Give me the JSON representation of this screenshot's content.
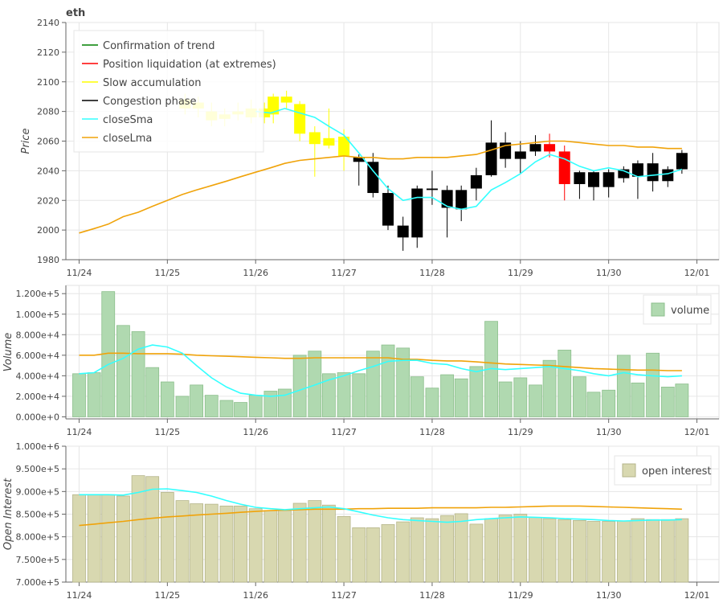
{
  "title": "eth",
  "colors": {
    "trend": "#008000",
    "liquidation": "#ff0000",
    "slow": "#ffff00",
    "congestion": "#000000",
    "sma": "#33ffff",
    "lma": "#f0a30a",
    "volume_fill": "#b0d9b0",
    "volume_edge": "#8cbf8c",
    "oi_fill": "#d8d8b0",
    "oi_edge": "#b5b58a",
    "grid": "#e6e6e6"
  },
  "chart_data": [
    {
      "type": "candlestick",
      "name": "price",
      "ylabel": "Price",
      "ylim": [
        1980,
        2140
      ],
      "yticks": [
        "1980",
        "2000",
        "2020",
        "2040",
        "2060",
        "2080",
        "2100",
        "2120",
        "2140"
      ],
      "ytick_values": [
        1980,
        2000,
        2020,
        2040,
        2060,
        2080,
        2100,
        2120,
        2140
      ],
      "xlim_day": [
        -0.15,
        7.25
      ],
      "xticks": [
        "11/24",
        "11/25",
        "11/26",
        "11/27",
        "11/28",
        "11/29",
        "11/30",
        "12/01"
      ],
      "xtick_days": [
        0,
        1,
        2,
        3,
        4,
        5,
        6,
        7
      ],
      "legend": [
        {
          "label": "Confirmation of trend",
          "color_key": "trend"
        },
        {
          "label": "Position liquidation (at extremes)",
          "color_key": "liquidation"
        },
        {
          "label": "Slow accumulation",
          "color_key": "slow"
        },
        {
          "label": "Congestion phase",
          "color_key": "congestion"
        },
        {
          "label": "closeSma",
          "color_key": "sma"
        },
        {
          "label": "closeLma",
          "color_key": "lma"
        }
      ],
      "candles": [
        {
          "day": 1.2,
          "open": 2082,
          "close": 2088,
          "high": 2092,
          "low": 2078,
          "phase": "slow"
        },
        {
          "day": 1.35,
          "open": 2086,
          "close": 2082,
          "high": 2090,
          "low": 2076,
          "phase": "slow"
        },
        {
          "day": 1.5,
          "open": 2080,
          "close": 2074,
          "high": 2086,
          "low": 2070,
          "phase": "slow"
        },
        {
          "day": 1.65,
          "open": 2075,
          "close": 2078,
          "high": 2082,
          "low": 2070,
          "phase": "slow"
        },
        {
          "day": 1.8,
          "open": 2078,
          "close": 2080,
          "high": 2086,
          "low": 2074,
          "phase": "slow"
        },
        {
          "day": 1.95,
          "open": 2082,
          "close": 2076,
          "high": 2088,
          "low": 2072,
          "phase": "slow"
        },
        {
          "day": 2.1,
          "open": 2076,
          "close": 2082,
          "high": 2086,
          "low": 2072,
          "phase": "slow"
        },
        {
          "day": 2.2,
          "open": 2078,
          "close": 2090,
          "high": 2092,
          "low": 2072,
          "phase": "slow"
        },
        {
          "day": 2.35,
          "open": 2086,
          "close": 2090,
          "high": 2094,
          "low": 2082,
          "phase": "slow"
        },
        {
          "day": 2.5,
          "open": 2085,
          "close": 2065,
          "high": 2087,
          "low": 2060,
          "phase": "slow"
        },
        {
          "day": 2.67,
          "open": 2066,
          "close": 2058,
          "high": 2070,
          "low": 2036,
          "phase": "slow"
        },
        {
          "day": 2.83,
          "open": 2062,
          "close": 2057,
          "high": 2082,
          "low": 2055,
          "phase": "slow"
        },
        {
          "day": 3.0,
          "open": 2063,
          "close": 2050,
          "high": 2068,
          "low": 2040,
          "phase": "slow"
        },
        {
          "day": 3.17,
          "open": 2049,
          "close": 2046,
          "high": 2051,
          "low": 2030,
          "phase": "congestion"
        },
        {
          "day": 3.33,
          "open": 2046,
          "close": 2025,
          "high": 2052,
          "low": 2022,
          "phase": "congestion"
        },
        {
          "day": 3.5,
          "open": 2025,
          "close": 2003,
          "high": 2030,
          "low": 2000,
          "phase": "congestion"
        },
        {
          "day": 3.67,
          "open": 2003,
          "close": 1995,
          "high": 2009,
          "low": 1986,
          "phase": "congestion"
        },
        {
          "day": 3.83,
          "open": 1995,
          "close": 2028,
          "high": 2030,
          "low": 1988,
          "phase": "congestion"
        },
        {
          "day": 4.0,
          "open": 2028,
          "close": 2027,
          "high": 2040,
          "low": 2017,
          "phase": "congestion"
        },
        {
          "day": 4.17,
          "open": 2027,
          "close": 2015,
          "high": 2030,
          "low": 1995,
          "phase": "congestion"
        },
        {
          "day": 4.33,
          "open": 2014,
          "close": 2027,
          "high": 2030,
          "low": 2006,
          "phase": "congestion"
        },
        {
          "day": 4.5,
          "open": 2028,
          "close": 2037,
          "high": 2042,
          "low": 2020,
          "phase": "congestion"
        },
        {
          "day": 4.67,
          "open": 2037,
          "close": 2059,
          "high": 2074,
          "low": 2036,
          "phase": "congestion"
        },
        {
          "day": 4.83,
          "open": 2059,
          "close": 2048,
          "high": 2066,
          "low": 2042,
          "phase": "congestion"
        },
        {
          "day": 5.0,
          "open": 2048,
          "close": 2053,
          "high": 2060,
          "low": 2038,
          "phase": "congestion"
        },
        {
          "day": 5.17,
          "open": 2053,
          "close": 2058,
          "high": 2064,
          "low": 2050,
          "phase": "congestion"
        },
        {
          "day": 5.33,
          "open": 2058,
          "close": 2053,
          "high": 2065,
          "low": 2049,
          "phase": "liquidation"
        },
        {
          "day": 5.5,
          "open": 2053,
          "close": 2031,
          "high": 2057,
          "low": 2020,
          "phase": "liquidation"
        },
        {
          "day": 5.67,
          "open": 2031,
          "close": 2039,
          "high": 2040,
          "low": 2021,
          "phase": "congestion"
        },
        {
          "day": 5.83,
          "open": 2039,
          "close": 2029,
          "high": 2040,
          "low": 2020,
          "phase": "congestion"
        },
        {
          "day": 6.0,
          "open": 2029,
          "close": 2039,
          "high": 2041,
          "low": 2022,
          "phase": "congestion"
        },
        {
          "day": 6.17,
          "open": 2035,
          "close": 2041,
          "high": 2043,
          "low": 2032,
          "phase": "congestion"
        },
        {
          "day": 6.33,
          "open": 2036,
          "close": 2045,
          "high": 2047,
          "low": 2021,
          "phase": "congestion"
        },
        {
          "day": 6.5,
          "open": 2045,
          "close": 2033,
          "high": 2052,
          "low": 2026,
          "phase": "congestion"
        },
        {
          "day": 6.67,
          "open": 2033,
          "close": 2041,
          "high": 2043,
          "low": 2029,
          "phase": "congestion"
        },
        {
          "day": 6.83,
          "open": 2041,
          "close": 2052,
          "high": 2054,
          "low": 2038,
          "phase": "congestion"
        }
      ],
      "closeSma": {
        "x": [
          2.0,
          2.17,
          2.33,
          2.5,
          2.67,
          2.83,
          3.0,
          3.17,
          3.33,
          3.5,
          3.67,
          3.83,
          4.0,
          4.17,
          4.33,
          4.5,
          4.67,
          4.83,
          5.0,
          5.17,
          5.33,
          5.5,
          5.67,
          5.83,
          6.0,
          6.17,
          6.33,
          6.5,
          6.67,
          6.83
        ],
        "y": [
          2080,
          2079,
          2082,
          2079,
          2076,
          2070,
          2064,
          2052,
          2040,
          2028,
          2020,
          2022,
          2022,
          2016,
          2014,
          2016,
          2027,
          2032,
          2038,
          2046,
          2051,
          2048,
          2043,
          2040,
          2042,
          2040,
          2036,
          2037,
          2038,
          2041
        ]
      },
      "closeLma": {
        "x": [
          0.0,
          0.17,
          0.33,
          0.5,
          0.67,
          0.83,
          1.0,
          1.17,
          1.33,
          1.5,
          1.67,
          1.83,
          2.0,
          2.17,
          2.33,
          2.5,
          2.67,
          2.83,
          3.0,
          3.17,
          3.33,
          3.5,
          3.67,
          3.83,
          4.0,
          4.17,
          4.33,
          4.5,
          4.67,
          4.83,
          5.0,
          5.17,
          5.33,
          5.5,
          5.67,
          5.83,
          6.0,
          6.17,
          6.33,
          6.5,
          6.67,
          6.83
        ],
        "y": [
          1998,
          2001,
          2004,
          2009,
          2012,
          2016,
          2020,
          2024,
          2027,
          2030,
          2033,
          2036,
          2039,
          2042,
          2045,
          2047,
          2048,
          2049,
          2050,
          2049,
          2049,
          2048,
          2048,
          2049,
          2049,
          2049,
          2050,
          2051,
          2054,
          2057,
          2058,
          2059,
          2060,
          2060,
          2059,
          2058,
          2057,
          2057,
          2056,
          2056,
          2055,
          2055
        ]
      }
    },
    {
      "type": "bar",
      "name": "volume",
      "ylabel": "Volume",
      "ylim": [
        -2000,
        128000
      ],
      "yticks": [
        "0.000e+0",
        "2.000e+4",
        "4.000e+4",
        "6.000e+4",
        "8.000e+4",
        "1.000e+5",
        "1.200e+5"
      ],
      "ytick_values": [
        0,
        20000,
        40000,
        60000,
        80000,
        100000,
        120000
      ],
      "xlim_day": [
        -0.15,
        7.25
      ],
      "xticks": [
        "11/24",
        "11/25",
        "11/26",
        "11/27",
        "11/28",
        "11/29",
        "11/30",
        "12/01"
      ],
      "xtick_days": [
        0,
        1,
        2,
        3,
        4,
        5,
        6,
        7
      ],
      "legend": [
        {
          "label": "volume",
          "color_key": "volume_fill"
        }
      ],
      "x": [
        0.0,
        0.17,
        0.33,
        0.5,
        0.67,
        0.83,
        1.0,
        1.17,
        1.33,
        1.5,
        1.67,
        1.83,
        2.0,
        2.17,
        2.33,
        2.5,
        2.67,
        2.83,
        3.0,
        3.17,
        3.33,
        3.5,
        3.67,
        3.83,
        4.0,
        4.17,
        4.33,
        4.5,
        4.67,
        4.83,
        5.0,
        5.17,
        5.33,
        5.5,
        5.67,
        5.83,
        6.0,
        6.17,
        6.33,
        6.5,
        6.67,
        6.83
      ],
      "values": [
        42000,
        43000,
        122000,
        89000,
        83000,
        48000,
        34000,
        20000,
        31000,
        21000,
        16000,
        14000,
        21000,
        25000,
        27000,
        60000,
        64000,
        42000,
        43000,
        42000,
        64000,
        70000,
        67000,
        39000,
        28000,
        41000,
        37000,
        49000,
        93000,
        34000,
        38000,
        31000,
        55000,
        65000,
        39000,
        24000,
        26000,
        60000,
        33000,
        62000,
        29000,
        32000
      ],
      "sma": [
        42000,
        43000,
        51000,
        57000,
        66000,
        70000,
        68000,
        62000,
        50000,
        38000,
        29000,
        23000,
        21000,
        20000,
        21000,
        26000,
        31000,
        36000,
        40000,
        45000,
        49000,
        54000,
        55000,
        55000,
        52000,
        51000,
        47000,
        44000,
        47000,
        46000,
        47000,
        48000,
        49000,
        47000,
        45000,
        42000,
        40000,
        43000,
        41000,
        40000,
        39000,
        40000
      ],
      "lma": [
        60000,
        60000,
        62000,
        62000,
        61500,
        61500,
        61500,
        61000,
        60000,
        59500,
        59000,
        58500,
        58000,
        57500,
        57000,
        57000,
        57500,
        57500,
        57500,
        57500,
        57500,
        57500,
        56000,
        56000,
        55000,
        54500,
        54500,
        53500,
        52500,
        51500,
        51000,
        50500,
        50000,
        49000,
        48000,
        47000,
        46500,
        46000,
        45500,
        45500,
        45000,
        45000
      ]
    },
    {
      "type": "bar",
      "name": "open_interest",
      "ylabel": "Open Interest",
      "ylim": [
        700000,
        1000000
      ],
      "yticks": [
        "7.000e+5",
        "7.500e+5",
        "8.000e+5",
        "8.500e+5",
        "9.000e+5",
        "9.500e+5",
        "1.000e+6"
      ],
      "ytick_values": [
        700000,
        750000,
        800000,
        850000,
        900000,
        950000,
        1000000
      ],
      "xlim_day": [
        -0.15,
        7.25
      ],
      "xticks": [
        "11/24",
        "11/25",
        "11/26",
        "11/27",
        "11/28",
        "11/29",
        "11/30",
        "12/01"
      ],
      "xtick_days": [
        0,
        1,
        2,
        3,
        4,
        5,
        6,
        7
      ],
      "legend": [
        {
          "label": "open interest",
          "color_key": "oi_fill"
        }
      ],
      "x": [
        0.0,
        0.17,
        0.33,
        0.5,
        0.67,
        0.83,
        1.0,
        1.17,
        1.33,
        1.5,
        1.67,
        1.83,
        2.0,
        2.17,
        2.33,
        2.5,
        2.67,
        2.83,
        3.0,
        3.17,
        3.33,
        3.5,
        3.67,
        3.83,
        4.0,
        4.17,
        4.33,
        4.5,
        4.67,
        4.83,
        5.0,
        5.17,
        5.33,
        5.5,
        5.67,
        5.83,
        6.0,
        6.17,
        6.33,
        6.5,
        6.67,
        6.83
      ],
      "values": [
        893000,
        893000,
        893000,
        890000,
        935000,
        933000,
        898000,
        880000,
        873000,
        872000,
        868000,
        868000,
        862000,
        858000,
        858000,
        874000,
        880000,
        870000,
        845000,
        820000,
        820000,
        827000,
        833000,
        842000,
        840000,
        847000,
        851000,
        828000,
        840000,
        848000,
        850000,
        843000,
        840000,
        838000,
        836000,
        834000,
        834000,
        835000,
        840000,
        838000,
        838000,
        840000
      ],
      "sma": [
        893000,
        893000,
        893000,
        892000,
        898000,
        905000,
        906000,
        902000,
        898000,
        890000,
        880000,
        872000,
        865000,
        862000,
        860000,
        862000,
        864000,
        866000,
        862000,
        855000,
        848000,
        842000,
        838000,
        836000,
        834000,
        832000,
        834000,
        838000,
        840000,
        842000,
        844000,
        843000,
        842000,
        840000,
        839000,
        838000,
        836000,
        835000,
        836000,
        837000,
        837000,
        838000
      ],
      "lma": [
        825000,
        828000,
        831000,
        834000,
        838000,
        841000,
        844000,
        846000,
        848000,
        850000,
        852000,
        854000,
        856000,
        858000,
        859000,
        860000,
        861000,
        861000,
        861000,
        862000,
        862000,
        863000,
        863000,
        863000,
        864000,
        864000,
        864000,
        864000,
        865000,
        865000,
        866000,
        867000,
        868000,
        868000,
        868000,
        867000,
        866000,
        865000,
        864000,
        863000,
        862000,
        861000
      ]
    }
  ]
}
